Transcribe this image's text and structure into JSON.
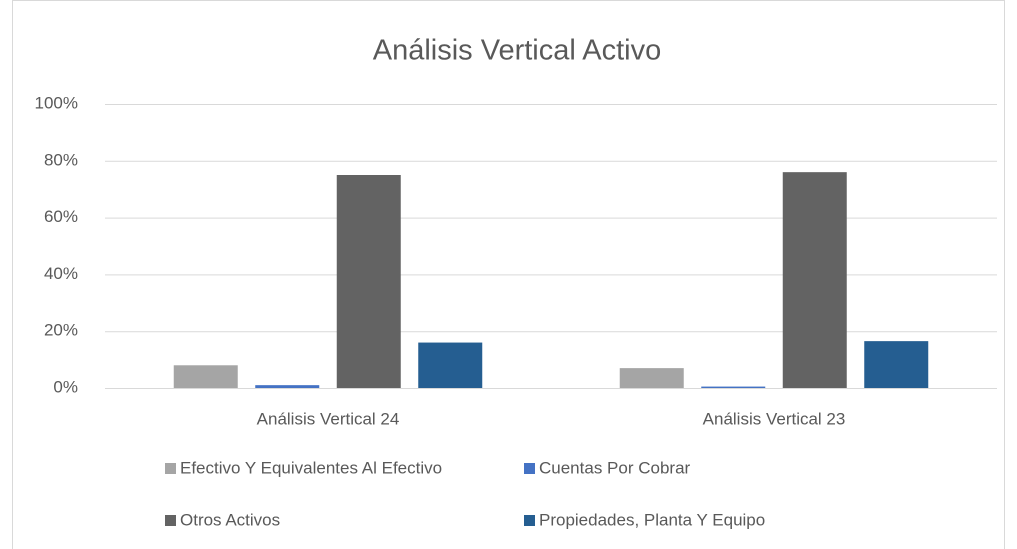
{
  "chart_data": {
    "type": "bar",
    "title": "Análisis Vertical Activo",
    "categories": [
      "Análisis Vertical 24",
      "Análisis Vertical 23"
    ],
    "series": [
      {
        "name": "Efectivo Y Equivalentes Al Efectivo",
        "color": "#a5a5a5",
        "values": [
          8,
          7
        ]
      },
      {
        "name": "Cuentas Por Cobrar",
        "color": "#4472c4",
        "values": [
          1,
          0.5
        ]
      },
      {
        "name": "Otros Activos",
        "color": "#636363",
        "values": [
          75,
          76
        ]
      },
      {
        "name": "Propiedades, Planta Y Equipo",
        "color": "#255e91",
        "values": [
          16,
          16.5
        ]
      }
    ],
    "ylim": [
      0,
      100
    ],
    "yticks": [
      {
        "value": 0,
        "label": "0%"
      },
      {
        "value": 20,
        "label": "20%"
      },
      {
        "value": 40,
        "label": "40%"
      },
      {
        "value": 60,
        "label": "60%"
      },
      {
        "value": 80,
        "label": "80%"
      },
      {
        "value": 100,
        "label": "100%"
      }
    ],
    "grid": true,
    "legend": "bottom"
  }
}
